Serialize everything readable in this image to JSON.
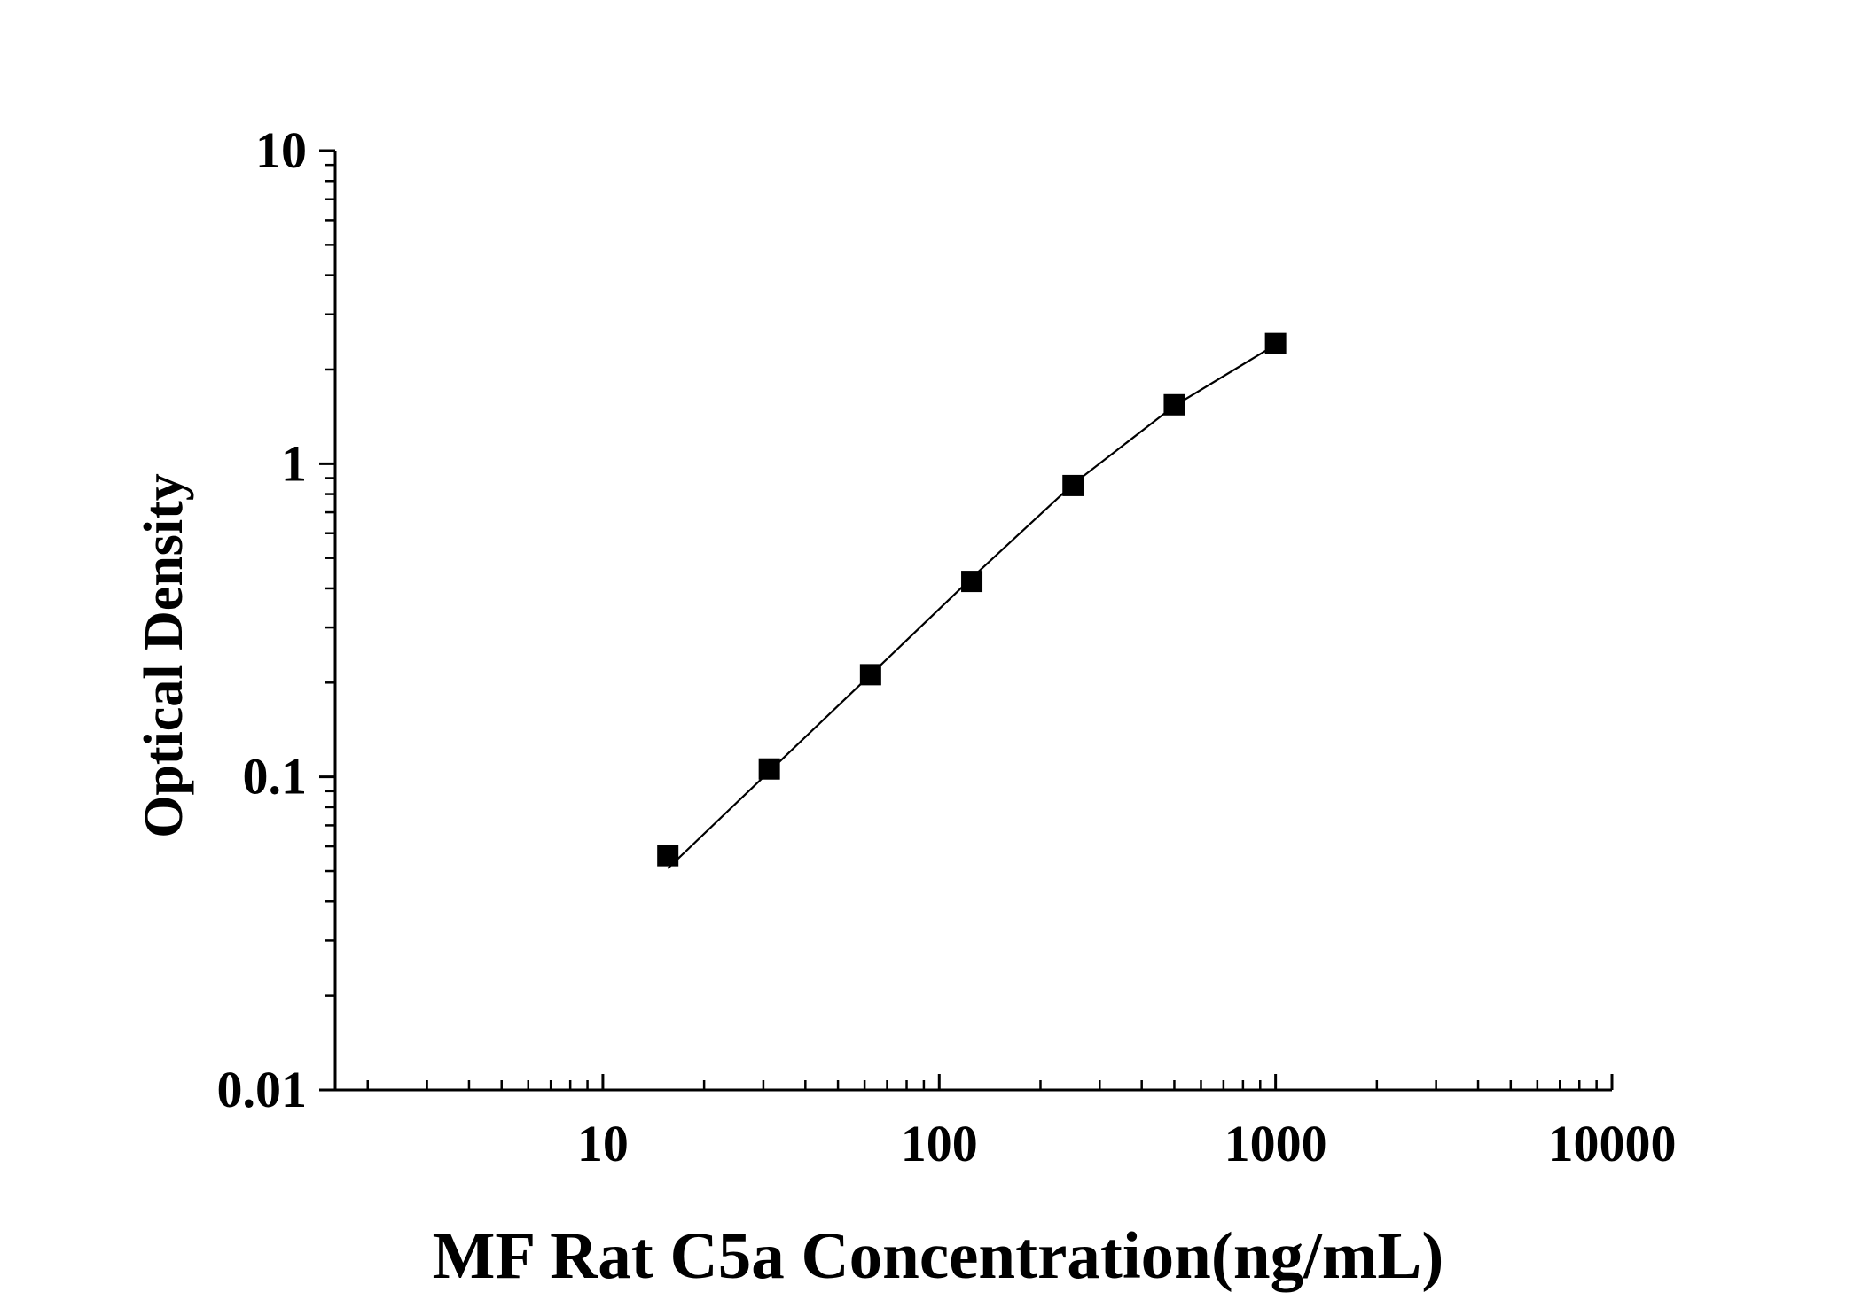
{
  "chart_data": {
    "type": "scatter",
    "title": "",
    "xlabel": "MF Rat C5a Concentration(ng/mL)",
    "ylabel": "Optical Density",
    "x_scale": "log",
    "y_scale": "log",
    "xlim": [
      1.6,
      10000
    ],
    "ylim": [
      0.01,
      10
    ],
    "x_ticks": [
      {
        "value": 10,
        "label": "10"
      },
      {
        "value": 100,
        "label": "100"
      },
      {
        "value": 1000,
        "label": "1000"
      },
      {
        "value": 10000,
        "label": "10000"
      }
    ],
    "y_ticks": [
      {
        "value": 0.01,
        "label": "0.01"
      },
      {
        "value": 0.1,
        "label": "0.1"
      },
      {
        "value": 1,
        "label": "1"
      },
      {
        "value": 10,
        "label": "10"
      }
    ],
    "grid": false,
    "legend": "none",
    "marker": "square",
    "color": "#000000",
    "series": [
      {
        "x": [
          15.6,
          31.25,
          62.5,
          125,
          250,
          500,
          1000
        ],
        "y": [
          0.056,
          0.106,
          0.212,
          0.421,
          0.852,
          1.543,
          2.421
        ]
      }
    ],
    "fit_line": {
      "x": [
        15.6,
        31.25,
        62.5,
        125,
        250,
        500,
        1000
      ],
      "y": [
        0.051,
        0.104,
        0.212,
        0.432,
        0.861,
        1.531,
        2.398
      ]
    }
  }
}
